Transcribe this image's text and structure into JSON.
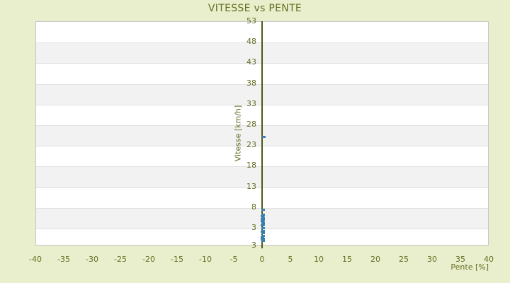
{
  "page": {
    "background": "#e9efcc"
  },
  "chart_data": {
    "type": "scatter",
    "title": "VITESSE vs PENTE",
    "xlabel": "Pente [%]",
    "ylabel": "Vitesse [km/h]",
    "xlim": [
      -40,
      40
    ],
    "ylim": [
      -1.3,
      53
    ],
    "x_ticks": [
      -40,
      -35,
      -30,
      -25,
      -20,
      -15,
      -10,
      -5,
      0,
      5,
      10,
      15,
      20,
      25,
      30,
      35,
      40
    ],
    "y_ticks": [
      53,
      48,
      43,
      38,
      33,
      28,
      23,
      18,
      13,
      8,
      3
    ],
    "y_baseline_label": "3",
    "grid": "horizontal alternating bands, no vertical gridlines",
    "legend_position": "none",
    "series": [
      {
        "name": "vitesse-vs-pente-points",
        "marker": "small-square",
        "color": "#3b7fae",
        "points": [
          [
            0.2,
            25.1
          ],
          [
            0.1,
            7.4
          ],
          [
            0.1,
            6.2
          ],
          [
            0.0,
            5.9
          ],
          [
            0.1,
            5.6
          ],
          [
            0.0,
            5.3
          ],
          [
            0.1,
            5.0
          ],
          [
            0.0,
            4.7
          ],
          [
            0.1,
            4.4
          ],
          [
            0.1,
            3.9
          ],
          [
            0.0,
            3.6
          ],
          [
            0.1,
            3.0
          ],
          [
            0.1,
            2.4
          ],
          [
            0.0,
            2.1
          ],
          [
            0.1,
            1.8
          ],
          [
            0.1,
            1.1
          ],
          [
            0.0,
            0.8
          ],
          [
            0.1,
            0.5
          ],
          [
            0.0,
            0.2
          ],
          [
            0.1,
            -0.1
          ]
        ]
      }
    ],
    "colors": {
      "background": "#e9efcc",
      "plot_background": "#ffffff",
      "band_alt": "#f2f2f2",
      "gridline": "#e1e1e1",
      "plot_border": "#c6c6c6",
      "axis_line": "#4d5a12",
      "text": "#686d26",
      "point": "#3b7fae"
    }
  }
}
